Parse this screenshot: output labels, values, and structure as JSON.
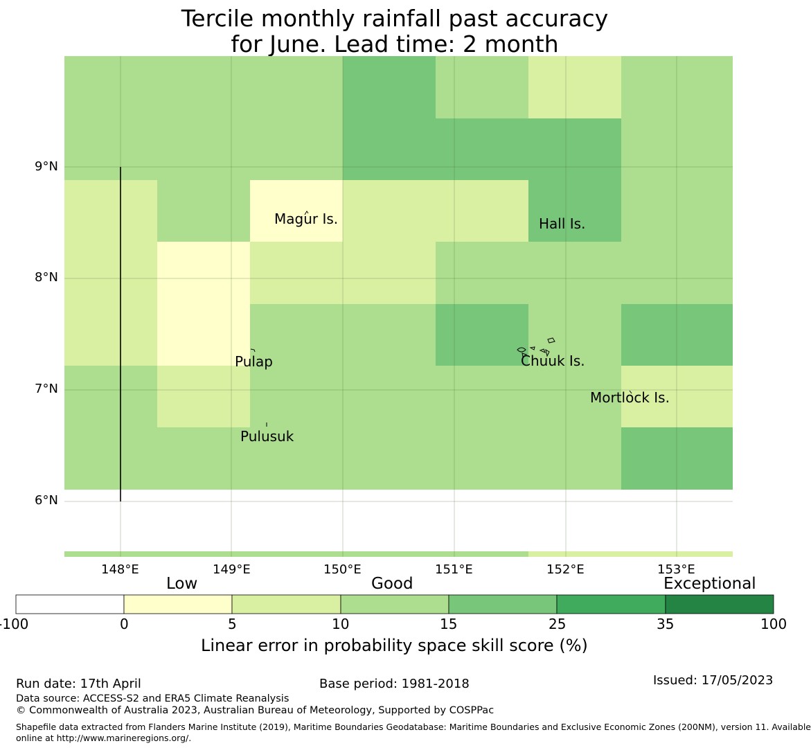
{
  "title": {
    "line1": "Tercile monthly rainfall past accuracy",
    "line2": "for June. Lead time: 2 month"
  },
  "map": {
    "lon_ticks": [
      "148°E",
      "149°E",
      "150°E",
      "151°E",
      "152°E",
      "153°E"
    ],
    "lat_ticks": [
      "9°N",
      "8°N",
      "7°N",
      "6°N"
    ],
    "grid_lines": true,
    "islands": [
      "Magur Is.",
      "Hall Is.",
      "Pulap",
      "Chuuk Is.",
      "Mortlock Is.",
      "Pulusuk"
    ],
    "cell_categories": [
      [
        2,
        2,
        2,
        3,
        2,
        1,
        2
      ],
      [
        2,
        2,
        2,
        3,
        3,
        3,
        2
      ],
      [
        1,
        2,
        0,
        1,
        1,
        3,
        2
      ],
      [
        1,
        0,
        1,
        1,
        2,
        2,
        2
      ],
      [
        1,
        0,
        2,
        2,
        3,
        2,
        3
      ],
      [
        2,
        1,
        2,
        2,
        2,
        2,
        1
      ],
      [
        2,
        2,
        2,
        2,
        2,
        2,
        3
      ]
    ],
    "colors": {
      "c0": "#ffffcc",
      "c1": "#d9f0a3",
      "c2": "#addd8e",
      "c3": "#78c679",
      "c4": "#41ab5d",
      "c5": "#238443",
      "blank": "#ffffff"
    }
  },
  "colorbar": {
    "categories": [
      "Low",
      "Good",
      "Exceptional"
    ],
    "ticks": [
      "-100",
      "0",
      "5",
      "10",
      "15",
      "25",
      "35",
      "100"
    ],
    "label": "Linear error in probability space skill score (%)"
  },
  "footer": {
    "run_date": "Run date: 17th April",
    "base_period": "Base period: 1981-2018",
    "issued": "Issued: 17/05/2023",
    "data_source": "Data source: ACCESS-S2 and ERA5 Climate Reanalysis",
    "copyright": "© Commonwealth of Australia 2023, Australian Bureau of Meteorology, Supported by COSPPac",
    "shapefile_line1": "Shapefile data extracted from Flanders Marine Institute (2019), Maritime Boundaries Geodatabase: Maritime Boundaries and Exclusive Economic Zones (200NM), version 11. Available",
    "shapefile_line2": "online at http://www.marineregions.org/."
  }
}
